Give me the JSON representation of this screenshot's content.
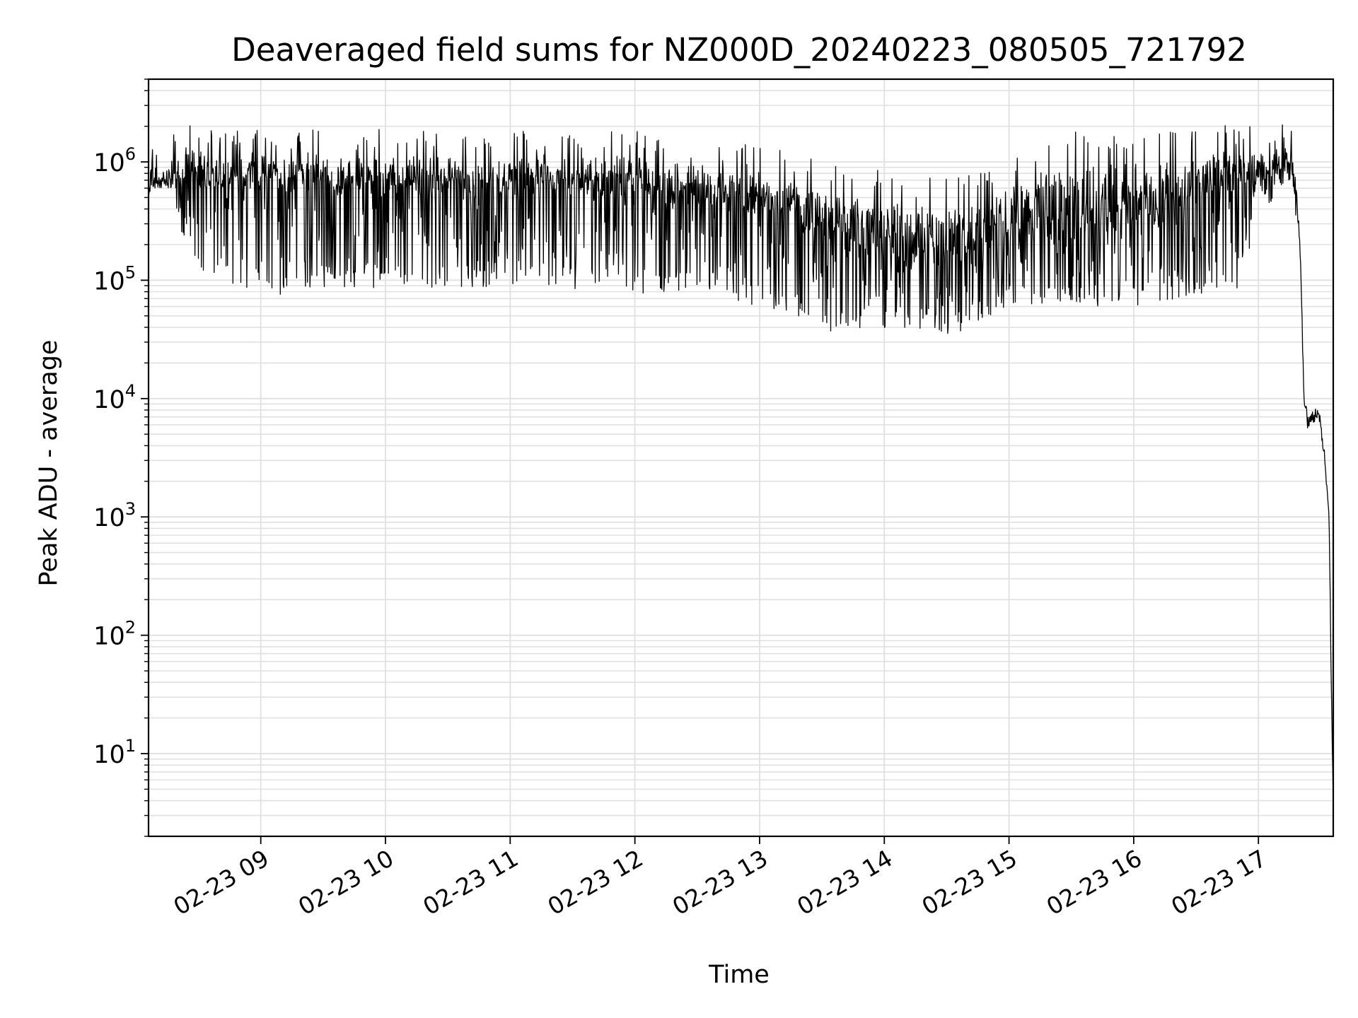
{
  "chart_data": {
    "type": "line",
    "title": "Deaveraged field sums for NZ000D_20240223_080505_721792",
    "xlabel": "Time",
    "ylabel": "Peak ADU - average",
    "yscale": "log",
    "grid": true,
    "line_color": "#000000",
    "grid_color": "#e0e0e0",
    "xlim": [
      "02-23 08:06",
      "02-23 17:36"
    ],
    "ylim": [
      2,
      5000000
    ],
    "x_ticks": [
      {
        "value": "02-23 09:00",
        "label": "02-23 09"
      },
      {
        "value": "02-23 10:00",
        "label": "02-23 10"
      },
      {
        "value": "02-23 11:00",
        "label": "02-23 11"
      },
      {
        "value": "02-23 12:00",
        "label": "02-23 12"
      },
      {
        "value": "02-23 13:00",
        "label": "02-23 13"
      },
      {
        "value": "02-23 14:00",
        "label": "02-23 14"
      },
      {
        "value": "02-23 15:00",
        "label": "02-23 15"
      },
      {
        "value": "02-23 16:00",
        "label": "02-23 16"
      },
      {
        "value": "02-23 17:00",
        "label": "02-23 17"
      }
    ],
    "y_ticks": [
      {
        "value": 10,
        "base": "10",
        "exp": "1"
      },
      {
        "value": 100,
        "base": "10",
        "exp": "2"
      },
      {
        "value": 1000,
        "base": "10",
        "exp": "3"
      },
      {
        "value": 10000,
        "base": "10",
        "exp": "4"
      },
      {
        "value": 100000,
        "base": "10",
        "exp": "5"
      },
      {
        "value": 1000000,
        "base": "10",
        "exp": "6"
      }
    ],
    "series": [
      {
        "x": [
          "02-23 08:06",
          "02-23 08:10",
          "02-23 08:15",
          "02-23 08:20",
          "02-23 08:25",
          "02-23 08:30",
          "02-23 08:35",
          "02-23 08:40",
          "02-23 08:45",
          "02-23 08:50",
          "02-23 09:00",
          "02-23 09:10",
          "02-23 09:20",
          "02-23 09:30",
          "02-23 09:40",
          "02-23 09:50",
          "02-23 10:00",
          "02-23 10:10",
          "02-23 10:20",
          "02-23 10:30",
          "02-23 10:40",
          "02-23 10:50",
          "02-23 11:00",
          "02-23 11:10",
          "02-23 11:20",
          "02-23 11:30",
          "02-23 11:40",
          "02-23 11:50",
          "02-23 12:00",
          "02-23 12:10",
          "02-23 12:20",
          "02-23 12:30",
          "02-23 12:40",
          "02-23 12:50",
          "02-23 13:00",
          "02-23 13:10",
          "02-23 13:20",
          "02-23 13:30",
          "02-23 13:40",
          "02-23 13:50",
          "02-23 14:00",
          "02-23 14:10",
          "02-23 14:20",
          "02-23 14:30",
          "02-23 14:40",
          "02-23 14:50",
          "02-23 15:00",
          "02-23 15:10",
          "02-23 15:20",
          "02-23 15:30",
          "02-23 15:40",
          "02-23 15:50",
          "02-23 16:00",
          "02-23 16:10",
          "02-23 16:20",
          "02-23 16:30",
          "02-23 16:40",
          "02-23 16:50",
          "02-23 17:00",
          "02-23 17:10",
          "02-23 17:15",
          "02-23 17:18",
          "02-23 17:20",
          "02-23 17:22",
          "02-23 17:24",
          "02-23 17:26",
          "02-23 17:28",
          "02-23 17:30",
          "02-23 17:32",
          "02-23 17:34",
          "02-23 17:35",
          "02-23 17:36"
        ],
        "y_median": [
          650000,
          700000,
          750000,
          800000,
          750000,
          800000,
          780000,
          760000,
          760000,
          750000,
          740000,
          730000,
          720000,
          710000,
          700000,
          690000,
          680000,
          690000,
          700000,
          700000,
          710000,
          710000,
          720000,
          720000,
          710000,
          700000,
          690000,
          680000,
          650000,
          620000,
          590000,
          560000,
          530000,
          480000,
          440000,
          400000,
          340000,
          280000,
          230000,
          200000,
          180000,
          160000,
          150000,
          160000,
          180000,
          200000,
          230000,
          270000,
          310000,
          330000,
          320000,
          310000,
          300000,
          350000,
          420000,
          600000,
          700000,
          750000,
          800000,
          1000000,
          1100000,
          600000,
          200000,
          10000,
          6000,
          7000,
          8000,
          6000,
          3000,
          1000,
          50,
          4
        ],
        "y_low": [
          550000,
          600000,
          600000,
          350000,
          150000,
          100000,
          90000,
          85000,
          85000,
          80000,
          75000,
          65000,
          80000,
          85000,
          85000,
          85000,
          85000,
          85000,
          85000,
          80000,
          85000,
          85000,
          80000,
          85000,
          85000,
          80000,
          80000,
          80000,
          75000,
          80000,
          80000,
          80000,
          75000,
          65000,
          60000,
          50000,
          40000,
          38000,
          36000,
          36000,
          38000,
          36000,
          34000,
          35000,
          38000,
          40000,
          55000,
          60000,
          60000,
          60000,
          60000,
          60000,
          60000,
          65000,
          70000,
          75000,
          75000,
          75000,
          350000,
          550000,
          700000,
          300000,
          100000,
          5000,
          4500,
          5000,
          5500,
          4500,
          2000,
          600,
          20,
          3
        ],
        "y_high": [
          800000,
          900000,
          1100000,
          1300000,
          1500000,
          1400000,
          1300000,
          1300000,
          1300000,
          1300000,
          1300000,
          1250000,
          1300000,
          1250000,
          1250000,
          1250000,
          1300000,
          1250000,
          1250000,
          1250000,
          1250000,
          1250000,
          1250000,
          1250000,
          1250000,
          1250000,
          1250000,
          1250000,
          1250000,
          1150000,
          1100000,
          1050000,
          1000000,
          950000,
          900000,
          850000,
          800000,
          700000,
          650000,
          600000,
          560000,
          520000,
          480000,
          520000,
          560000,
          620000,
          700000,
          900000,
          1100000,
          1250000,
          1200000,
          1150000,
          1200000,
          1250000,
          1300000,
          1350000,
          1350000,
          1350000,
          1350000,
          1450000,
          1450000,
          900000,
          300000,
          13000,
          9000,
          9500,
          10000,
          8000,
          4000,
          1500,
          100,
          5
        ]
      }
    ]
  }
}
